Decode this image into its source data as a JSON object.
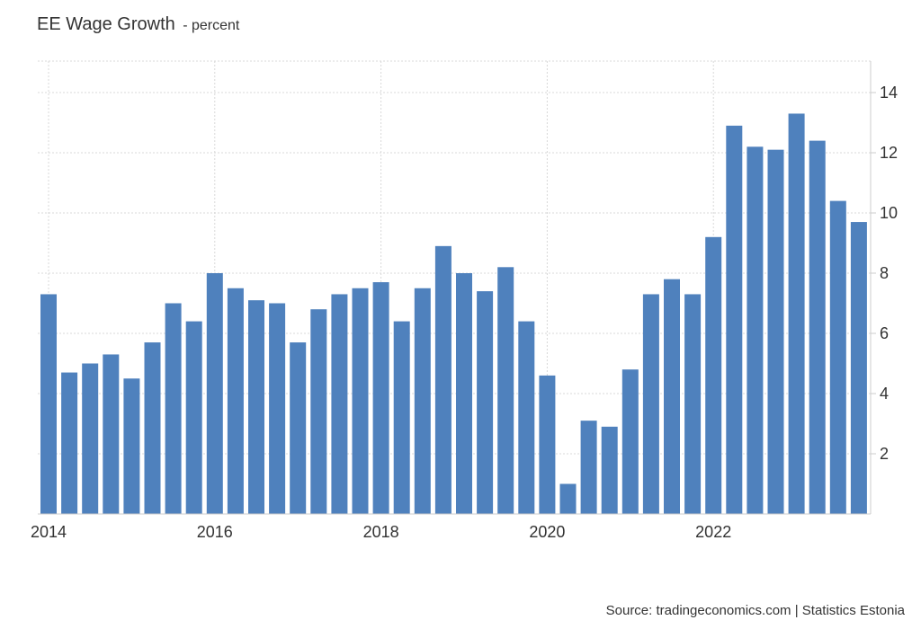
{
  "title": "EE Wage Growth",
  "subtitle": "- percent",
  "source": "Source: tradingeconomics.com | Statistics Estonia",
  "colors": {
    "bar": "#4f81bd",
    "grid": "#d9d9d9",
    "axis": "#cccccc"
  },
  "chart_data": {
    "type": "bar",
    "frequency": "quarterly",
    "xlabel": "",
    "ylabel": "",
    "ylim": [
      0,
      15
    ],
    "grid": true,
    "y_axis_side": "right",
    "y_ticks": [
      "2",
      "4",
      "6",
      "8",
      "10",
      "12",
      "14"
    ],
    "x_ticks": [
      "2014",
      "2016",
      "2018",
      "2020",
      "2022"
    ],
    "categories": [
      "2014 Q1",
      "2014 Q2",
      "2014 Q3",
      "2014 Q4",
      "2015 Q1",
      "2015 Q2",
      "2015 Q3",
      "2015 Q4",
      "2016 Q1",
      "2016 Q2",
      "2016 Q3",
      "2016 Q4",
      "2017 Q1",
      "2017 Q2",
      "2017 Q3",
      "2017 Q4",
      "2018 Q1",
      "2018 Q2",
      "2018 Q3",
      "2018 Q4",
      "2019 Q1",
      "2019 Q2",
      "2019 Q3",
      "2019 Q4",
      "2020 Q1",
      "2020 Q2",
      "2020 Q3",
      "2020 Q4",
      "2021 Q1",
      "2021 Q2",
      "2021 Q3",
      "2021 Q4",
      "2022 Q1",
      "2022 Q2",
      "2022 Q3",
      "2022 Q4",
      "2023 Q1",
      "2023 Q2",
      "2023 Q3",
      "2023 Q4"
    ],
    "values": [
      7.3,
      4.7,
      5.0,
      5.3,
      4.5,
      5.7,
      7.0,
      6.4,
      8.0,
      7.5,
      7.1,
      7.0,
      5.7,
      6.8,
      7.3,
      7.5,
      7.7,
      6.4,
      7.5,
      8.9,
      8.0,
      7.4,
      8.2,
      6.4,
      4.6,
      1.0,
      3.1,
      2.9,
      4.8,
      7.3,
      7.8,
      7.3,
      9.2,
      12.9,
      12.2,
      12.1,
      13.3,
      12.4,
      10.4,
      9.7
    ]
  }
}
